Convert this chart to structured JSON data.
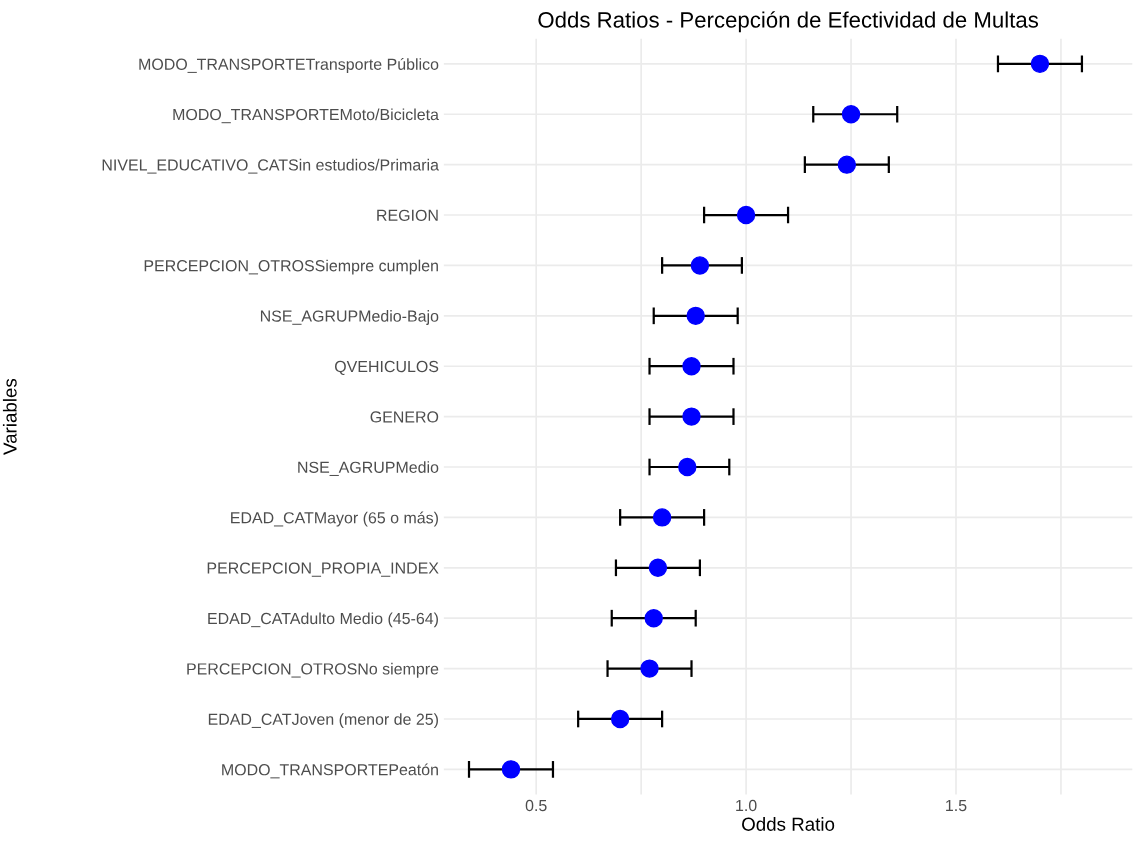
{
  "chart_data": {
    "type": "scatter",
    "orientation": "horizontal",
    "title": "Odds Ratios - Percepción de Efectividad de Multas",
    "xlabel": "Odds Ratio",
    "ylabel": "Variables",
    "categories": [
      "MODO_TRANSPORTETransporte Público",
      "MODO_TRANSPORTEMoto/Bicicleta",
      "NIVEL_EDUCATIVO_CATSin estudios/Primaria",
      "REGION",
      "PERCEPCION_OTROSSiempre cumplen",
      "NSE_AGRUPMedio-Bajo",
      "QVEHICULOS",
      "GENERO",
      "NSE_AGRUPMedio",
      "EDAD_CATMayor (65 o más)",
      "PERCEPCION_PROPIA_INDEX",
      "EDAD_CATAdulto Medio (45-64)",
      "PERCEPCION_OTROSNo siempre",
      "EDAD_CATJoven (menor de 25)",
      "MODO_TRANSPORTEPeatón"
    ],
    "series": [
      {
        "color": "#0000ff",
        "values": [
          1.7,
          1.25,
          1.24,
          1.0,
          0.89,
          0.88,
          0.87,
          0.87,
          0.86,
          0.8,
          0.79,
          0.78,
          0.77,
          0.7,
          0.44
        ],
        "errors": [
          [
            1.6,
            1.8
          ],
          [
            1.16,
            1.36
          ],
          [
            1.14,
            1.34
          ],
          [
            0.9,
            1.1
          ],
          [
            0.8,
            0.99
          ],
          [
            0.78,
            0.98
          ],
          [
            0.77,
            0.97
          ],
          [
            0.77,
            0.97
          ],
          [
            0.77,
            0.96
          ],
          [
            0.7,
            0.9
          ],
          [
            0.69,
            0.89
          ],
          [
            0.68,
            0.88
          ],
          [
            0.67,
            0.87
          ],
          [
            0.6,
            0.8
          ],
          [
            0.34,
            0.54
          ]
        ]
      }
    ],
    "xlim": [
      0.28,
      1.92
    ],
    "xticks": [
      0.5,
      {
        "value": 0.75,
        "label": null
      },
      {
        "value": 1.0,
        "label": "1.0"
      },
      {
        "value": 1.25,
        "label": null
      },
      1.5,
      {
        "value": 1.75,
        "label": null
      }
    ],
    "grid": true,
    "marker": "circle",
    "legend": false
  }
}
